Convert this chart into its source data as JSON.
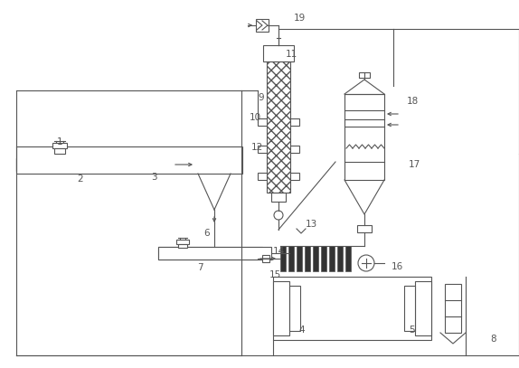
{
  "bg": "#ffffff",
  "lc": "#555555",
  "lw": 0.8,
  "fs": 7.5
}
